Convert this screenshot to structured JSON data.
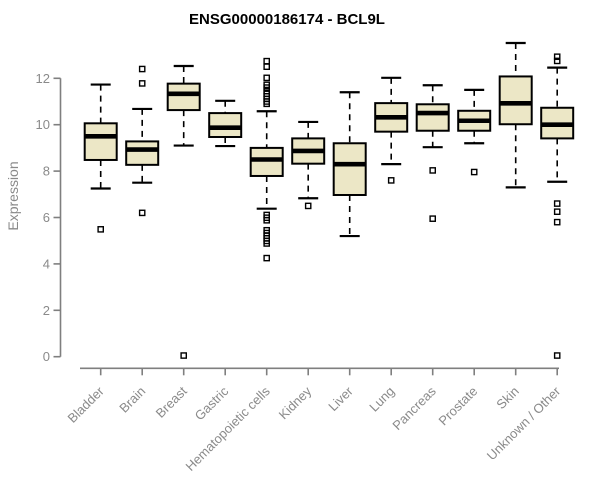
{
  "chart_data": {
    "type": "boxplot",
    "title": "ENSG00000186174 - BCL9L",
    "ylabel": "Expression",
    "xlabel": "",
    "ylim": [
      0,
      12
    ],
    "yticks": [
      0,
      2,
      4,
      6,
      8,
      10,
      12
    ],
    "grid": false,
    "legend": "none",
    "categories": [
      "Bladder",
      "Brain",
      "Breast",
      "Gastric",
      "Hematopoietic cells",
      "Kidney",
      "Liver",
      "Lung",
      "Pancreas",
      "Prostate",
      "Skin",
      "Unknown / Other"
    ],
    "boxes": [
      {
        "category": "Bladder",
        "low": 7.25,
        "q1": 8.48,
        "median": 9.5,
        "q3": 10.06,
        "high": 11.73,
        "outliers": [
          5.49
        ]
      },
      {
        "category": "Brain",
        "low": 7.5,
        "q1": 8.27,
        "median": 8.93,
        "q3": 9.28,
        "high": 10.68,
        "outliers": [
          12.4,
          11.78,
          6.2
        ]
      },
      {
        "category": "Breast",
        "low": 9.1,
        "q1": 10.63,
        "median": 11.33,
        "q3": 11.77,
        "high": 12.53,
        "outliers": [
          0.05
        ]
      },
      {
        "category": "Gastric",
        "low": 9.08,
        "q1": 9.47,
        "median": 9.87,
        "q3": 10.5,
        "high": 11.03,
        "outliers": []
      },
      {
        "category": "Hematopoietic cells",
        "low": 6.38,
        "q1": 7.79,
        "median": 8.5,
        "q3": 9.0,
        "high": 10.58,
        "outliers": [
          12.74,
          12.5,
          12.02,
          11.72,
          11.6,
          11.45,
          11.33,
          11.22,
          11.11,
          11.0,
          10.9,
          6.11,
          5.99,
          5.88,
          5.45,
          5.33,
          5.21,
          5.1,
          4.99,
          4.88,
          4.25
        ]
      },
      {
        "category": "Kidney",
        "low": 6.83,
        "q1": 8.32,
        "median": 8.87,
        "q3": 9.41,
        "high": 10.12,
        "outliers": [
          6.5
        ]
      },
      {
        "category": "Liver",
        "low": 5.2,
        "q1": 6.97,
        "median": 8.3,
        "q3": 9.2,
        "high": 11.4,
        "outliers": []
      },
      {
        "category": "Lung",
        "low": 8.3,
        "q1": 9.7,
        "median": 10.32,
        "q3": 10.93,
        "high": 12.02,
        "outliers": [
          7.6
        ]
      },
      {
        "category": "Pancreas",
        "low": 9.03,
        "q1": 9.74,
        "median": 10.5,
        "q3": 10.88,
        "high": 11.7,
        "outliers": [
          8.03,
          5.95
        ]
      },
      {
        "category": "Prostate",
        "low": 9.2,
        "q1": 9.74,
        "median": 10.17,
        "q3": 10.6,
        "high": 11.5,
        "outliers": [
          7.96
        ]
      },
      {
        "category": "Skin",
        "low": 7.3,
        "q1": 10.02,
        "median": 10.92,
        "q3": 12.08,
        "high": 13.52,
        "outliers": []
      },
      {
        "category": "Unknown / Other",
        "low": 7.54,
        "q1": 9.41,
        "median": 10.0,
        "q3": 10.73,
        "high": 12.46,
        "outliers": [
          12.93,
          12.75,
          6.6,
          6.25,
          5.8,
          0.05
        ]
      }
    ],
    "colors": {
      "box_fill": "#ECE7C6",
      "box_stroke": "#000000",
      "median": "#000000",
      "whisker": "#000000",
      "outlier": "#000000",
      "axis": "#7f7f7f",
      "tick_text": "#8a8a8a",
      "title_text": "#000000",
      "background": "#ffffff"
    }
  }
}
